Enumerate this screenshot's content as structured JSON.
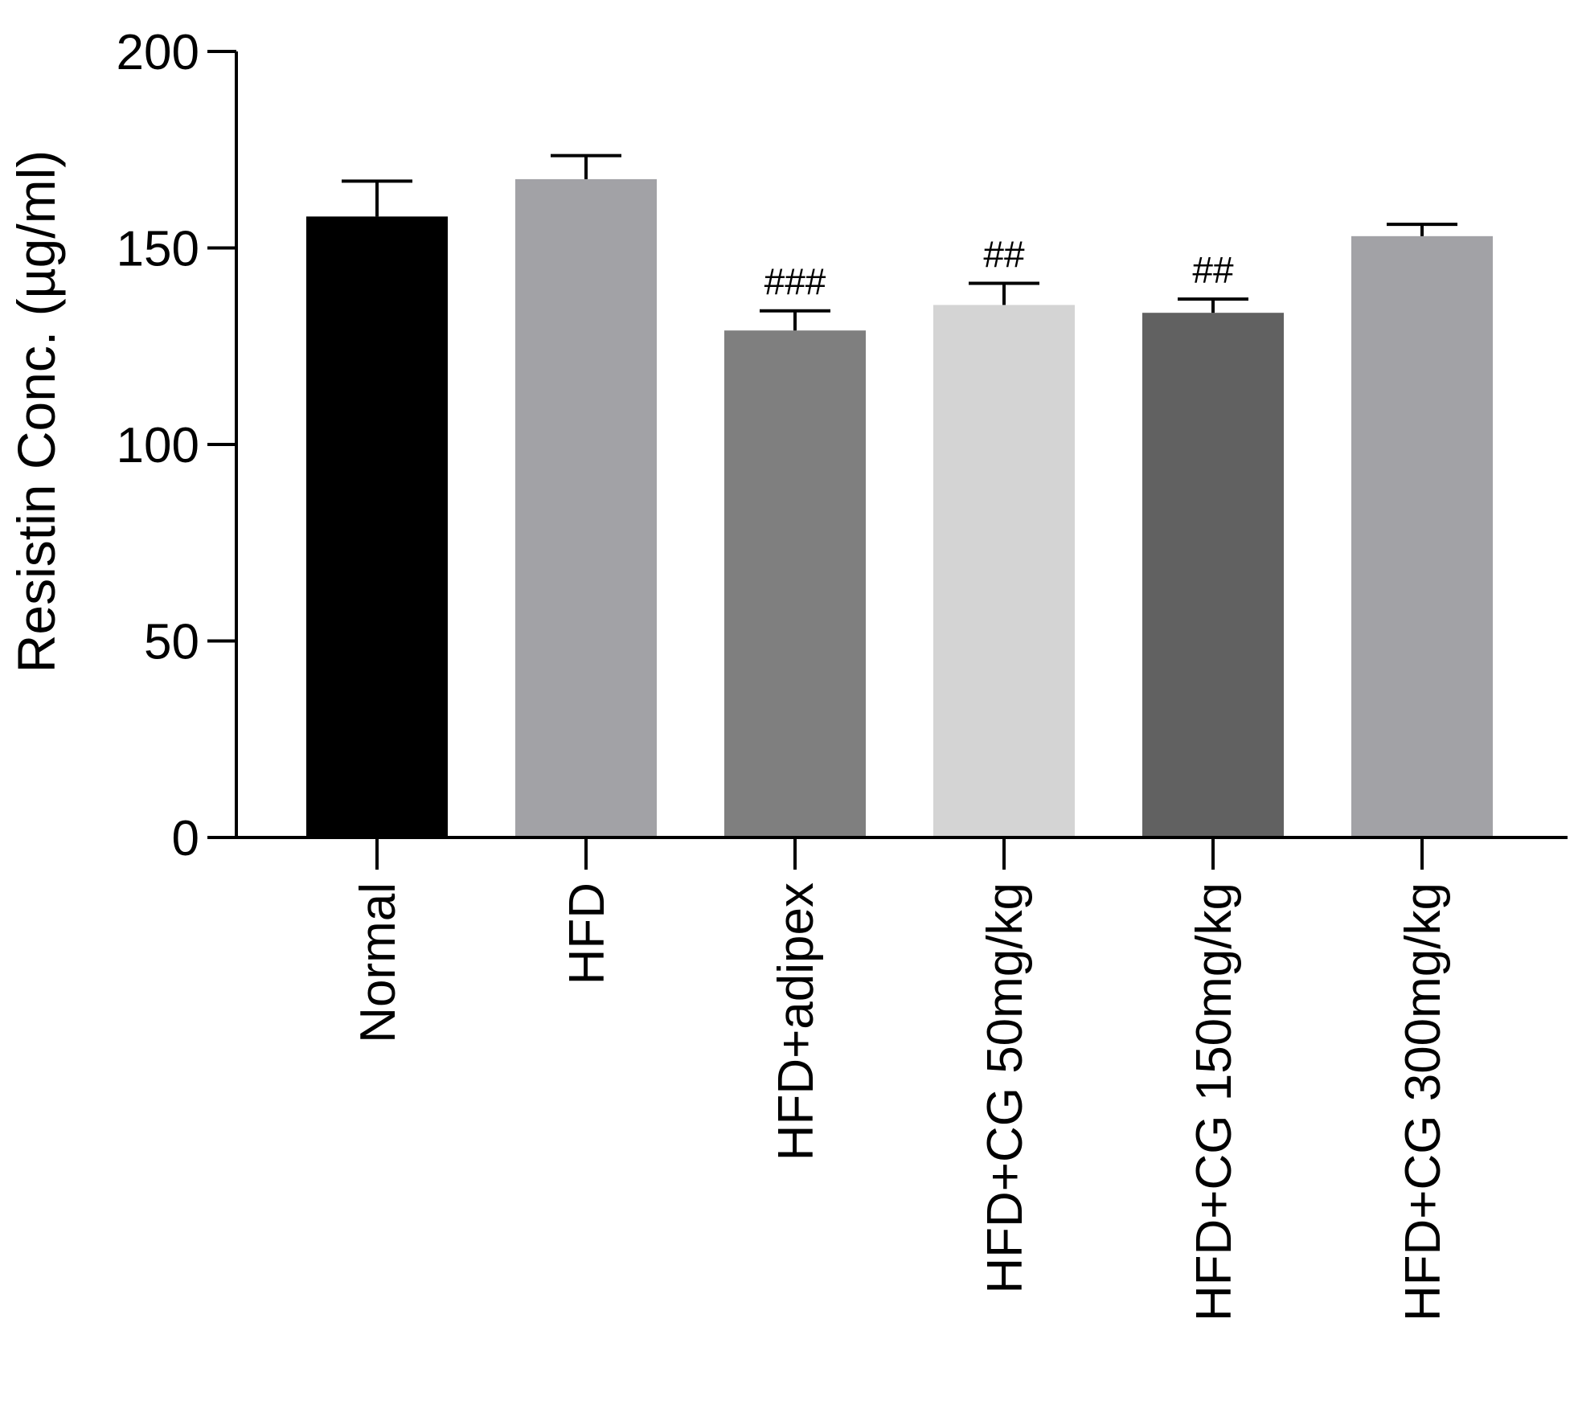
{
  "chart_data": {
    "type": "bar",
    "title": "",
    "xlabel": "",
    "ylabel": "Resistin Conc. (µg/ml)",
    "ylim": [
      0,
      200
    ],
    "yticks": [
      0,
      50,
      100,
      150,
      200
    ],
    "grid": false,
    "legend": "none",
    "categories": [
      "Normal",
      "HFD",
      "HFD+adipex",
      "HFD+CG 50mg/kg",
      "HFD+CG 150mg/kg",
      "HFD+CG 300mg/kg"
    ],
    "values": [
      158,
      167.5,
      129,
      135.5,
      133.5,
      153
    ],
    "error_upper": [
      167,
      173.5,
      134,
      141,
      137,
      156
    ],
    "annotations": [
      "",
      "",
      "###",
      "##",
      "##",
      ""
    ],
    "colors": [
      "#000000",
      "#a2a2a6",
      "#7f7f7f",
      "#d4d4d4",
      "#616161",
      "#a2a2a6"
    ],
    "axis_color": "#000000"
  }
}
